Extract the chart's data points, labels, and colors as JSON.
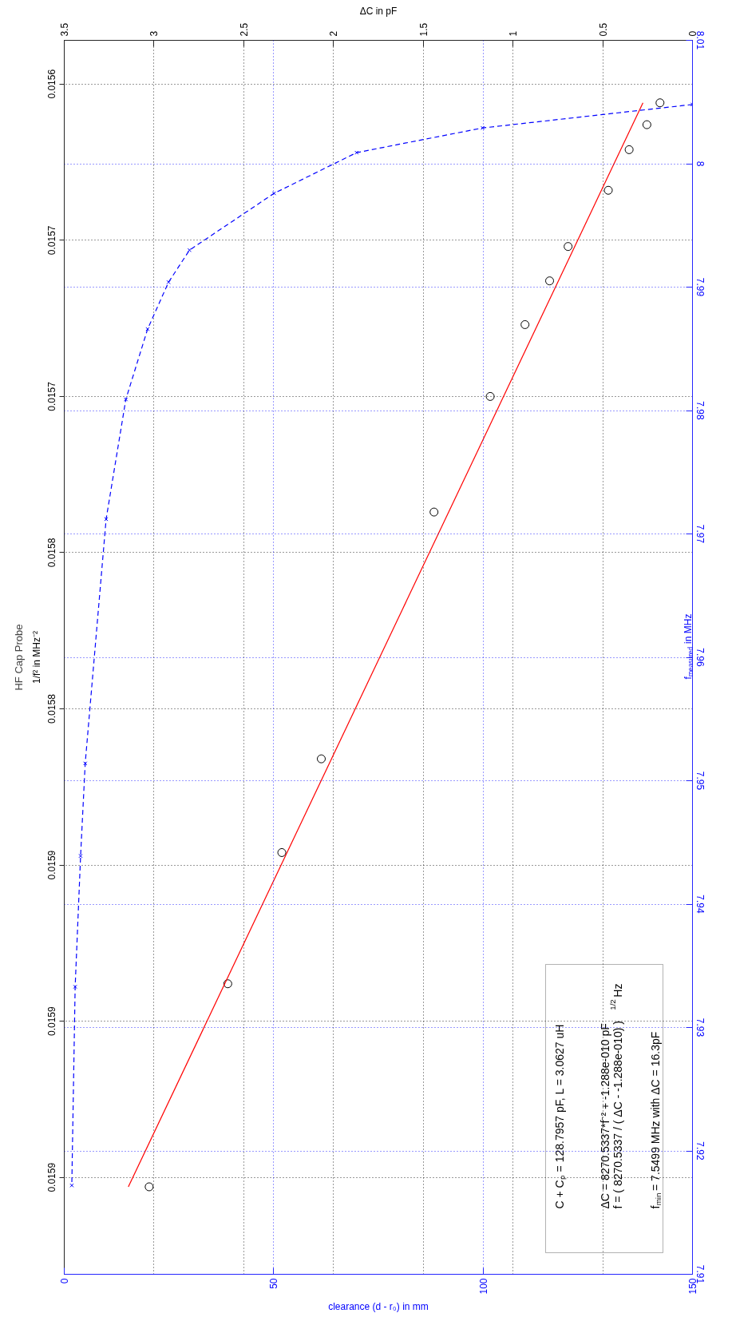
{
  "chart_data": [
    {
      "type": "scatter",
      "title": "HF Cap Probe",
      "xlabel": "ΔC in pF",
      "ylabel": "1/f² in MHz⁻²",
      "xlim": [
        3.5,
        0
      ],
      "xticks": [
        3.5,
        3,
        2.5,
        2,
        1.5,
        1,
        0.5,
        0
      ],
      "ylim": [
        0.015981,
        0.015586
      ],
      "yticks": [
        {
          "value": 0.0156,
          "label": "0.0156"
        },
        {
          "value": 0.01565,
          "label": "0.0157"
        },
        {
          "value": 0.0157,
          "label": "0.0157"
        },
        {
          "value": 0.01575,
          "label": "0.0158"
        },
        {
          "value": 0.0158,
          "label": "0.0158"
        },
        {
          "value": 0.01585,
          "label": "0.0159"
        },
        {
          "value": 0.0159,
          "label": "0.0159"
        },
        {
          "value": 0.01595,
          "label": "0.0159"
        }
      ],
      "grid": true,
      "series": [
        {
          "color": "#000000",
          "marker": "circle",
          "x": [
            0.181,
            0.254,
            0.353,
            0.469,
            0.693,
            0.796,
            0.933,
            1.127,
            1.44,
            2.068,
            2.288,
            2.589,
            3.027
          ],
          "values": [
            0.015606,
            0.015613,
            0.015621,
            0.015634,
            0.015652,
            0.015663,
            0.015677,
            0.0157,
            0.015737,
            0.015816,
            0.015846,
            0.015888,
            0.015953
          ]
        },
        {
          "type": "line",
          "color": "#ff0000",
          "line_style": "solid",
          "x": [
            0.276,
            3.143
          ],
          "values": [
            0.015606,
            0.015953
          ]
        }
      ],
      "annotations": [
        "C + Cₚ = 128.7957 pF, L = 3.0627 uH",
        "ΔC = 8270.5337*f⁻² + -1.288e-010 pF",
        "f = ( 8270.5337 / ( ΔC - -1.288e-010) )$^{1/2}$ Hz",
        "f$_{min}$ = 7.5499 MHz with ΔC = 16.3pF"
      ]
    },
    {
      "type": "line",
      "xlabel": "clearance (d - r₀) in mm",
      "ylabel": "f$_{measured}$ in MHz",
      "xlim": [
        0,
        150
      ],
      "xticks": [
        0,
        50,
        100,
        150
      ],
      "ylim": [
        7.91,
        8.01
      ],
      "yticks": [
        7.91,
        7.92,
        7.93,
        7.94,
        7.95,
        7.96,
        7.97,
        7.98,
        7.99,
        8,
        8.01
      ],
      "grid": true,
      "series": [
        {
          "color": "#0000ff",
          "marker": "cross",
          "line_style": "dashed",
          "x": [
            150.0,
            99.9,
            69.8,
            50.1,
            29.9,
            24.9,
            19.9,
            14.7,
            10.0,
            5.0,
            3.9,
            2.6,
            1.8
          ],
          "values": [
            8.0048,
            8.0029,
            8.0009,
            7.9976,
            7.993,
            7.9904,
            7.9866,
            7.9809,
            7.9712,
            7.9514,
            7.9439,
            7.9333,
            7.9172
          ]
        }
      ]
    }
  ]
}
